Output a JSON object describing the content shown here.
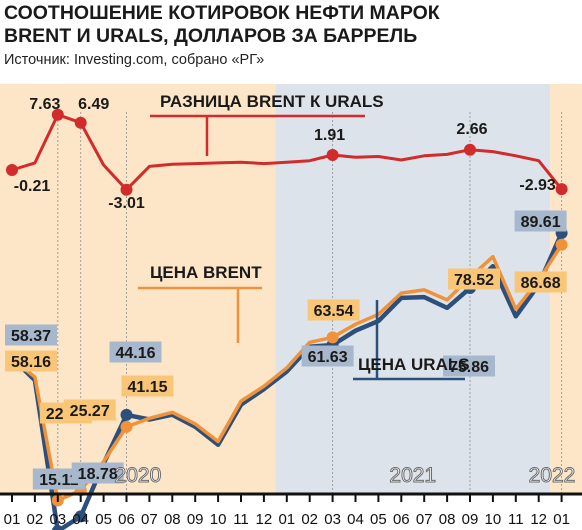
{
  "header": {
    "title_line1": "СООТНОШЕНИЕ КОТИРОВОК НЕФТИ МАРОК",
    "title_line2": "BRENT И URALS, ДОЛЛАРОВ ЗА БАРРЕЛЬ",
    "source": "Источник: Investing.com, собрано «РГ»"
  },
  "chart_data": {
    "type": "line",
    "title": "СООТНОШЕНИЕ КОТИРОВОК НЕФТИ МАРОК BRENT И URALS, ДОЛЛАРОВ ЗА БАРРЕЛЬ",
    "source": "Источник: Investing.com, собрано «РГ»",
    "x": [
      "01",
      "02",
      "03",
      "04",
      "05",
      "06",
      "07",
      "08",
      "09",
      "10",
      "11",
      "12",
      "01",
      "02",
      "03",
      "04",
      "05",
      "06",
      "07",
      "08",
      "09",
      "10",
      "11",
      "12",
      "01"
    ],
    "years": [
      {
        "label": "2020",
        "start": 0,
        "end": 11
      },
      {
        "label": "2021",
        "start": 12,
        "end": 23
      },
      {
        "label": "2022",
        "start": 24,
        "end": 24
      }
    ],
    "series": [
      {
        "name": "РАЗНИЦА BRENT К URALS",
        "color": "#d22b2b",
        "values": [
          -0.21,
          0.8,
          7.63,
          6.49,
          0.5,
          -3.01,
          0.3,
          0.6,
          0.7,
          0.8,
          0.9,
          0.7,
          0.9,
          1.1,
          1.91,
          1.6,
          1.7,
          1.2,
          1.8,
          2.0,
          2.66,
          2.4,
          1.8,
          1.1,
          -2.93
        ],
        "labels": [
          {
            "index": 0,
            "text": "-0.21"
          },
          {
            "index": 2,
            "text": "7.63"
          },
          {
            "index": 3,
            "text": "6.49"
          },
          {
            "index": 5,
            "text": "-3.01"
          },
          {
            "index": 14,
            "text": "1.91"
          },
          {
            "index": 20,
            "text": "2.66"
          },
          {
            "index": 24,
            "text": "-2.93"
          }
        ]
      },
      {
        "name": "ЦЕНА BRENT",
        "color": "#f0923a",
        "values": [
          58.16,
          53.6,
          22.74,
          25.27,
          32.5,
          41.15,
          43.3,
          44.8,
          41.9,
          37.5,
          47.6,
          51.3,
          55.9,
          62.3,
          63.54,
          66.8,
          69.3,
          74.6,
          75.4,
          72.9,
          78.52,
          83.7,
          70.6,
          77.8,
          86.68
        ],
        "labels": [
          {
            "index": 0,
            "text": "58.16"
          },
          {
            "index": 2,
            "text": "22.74"
          },
          {
            "index": 3,
            "text": "25.27"
          },
          {
            "index": 5,
            "text": "41.15"
          },
          {
            "index": 14,
            "text": "63.54"
          },
          {
            "index": 20,
            "text": "78.52"
          },
          {
            "index": 24,
            "text": "86.68"
          }
        ]
      },
      {
        "name": "ЦЕНА URALS",
        "color": "#2c4f7c",
        "values": [
          58.37,
          52.8,
          15.11,
          18.78,
          32.0,
          44.16,
          43.0,
          44.2,
          41.2,
          36.7,
          46.7,
          50.6,
          55.0,
          61.2,
          61.63,
          65.2,
          67.6,
          73.4,
          73.6,
          70.9,
          75.86,
          81.3,
          68.8,
          76.7,
          89.61
        ],
        "labels": [
          {
            "index": 0,
            "text": "58.37"
          },
          {
            "index": 2,
            "text": "15.11"
          },
          {
            "index": 3,
            "text": "18.78"
          },
          {
            "index": 5,
            "text": "44.16"
          },
          {
            "index": 14,
            "text": "61.63"
          },
          {
            "index": 20,
            "text": "75.86"
          },
          {
            "index": 24,
            "text": "89.61"
          }
        ]
      }
    ]
  },
  "colors": {
    "background_2020": "#fde6c7",
    "background_2021": "#dce3ea",
    "background_2022": "#fde6c7",
    "diff_line": "#d22b2b",
    "brent_line": "#f0923a",
    "urals_line": "#2c4f7c",
    "brent_label_bg": "#f9c577",
    "urals_label_bg": "#a7b8cc",
    "title_text": "#1a1a1a"
  }
}
